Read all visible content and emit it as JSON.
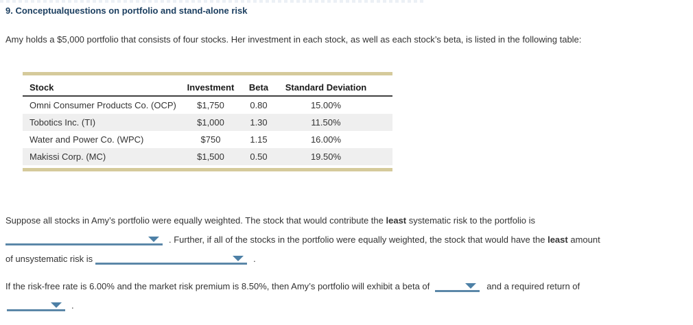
{
  "page": {
    "title": "9. Conceptualquestions on portfolio and stand-alone risk",
    "intro": "Amy holds a $5,000 portfolio that consists of four stocks. Her investment in each stock, as well as each stock’s beta, is listed in the following table:"
  },
  "table": {
    "headers": [
      "Stock",
      "Investment",
      "Beta",
      "Standard Deviation"
    ],
    "rows": [
      [
        "Omni Consumer Products Co. (OCP)",
        "$1,750",
        "0.80",
        "15.00%"
      ],
      [
        "Tobotics Inc. (TI)",
        "$1,000",
        "1.30",
        "11.50%"
      ],
      [
        "Water and Power Co. (WPC)",
        "$750",
        "1.15",
        "16.00%"
      ],
      [
        "Makissi Corp. (MC)",
        "$1,500",
        "0.50",
        "19.50%"
      ]
    ]
  },
  "q1": {
    "l1a": "Suppose all stocks in Amy’s portfolio were equally weighted. The stock that would contribute the ",
    "l1b": "least",
    "l1c": " systematic risk to the portfolio is",
    "l2a": ". Further, if all of the stocks in the portfolio were equally weighted, the stock that would have the ",
    "l2b": "least",
    "l2c": " amount",
    "l3a": "of unsystematic risk is",
    "l3b": "."
  },
  "q2": {
    "l1a": "If the risk-free rate is 6.00% and the market risk premium is 8.50%, then Amy’s portfolio will exhibit a beta of",
    "l1b": "and a required return of",
    "l2a": "."
  },
  "dropdowns": {
    "least_systematic_risk": {
      "value": "",
      "icon": "dropdown-arrow-icon"
    },
    "least_unsystematic_risk": {
      "value": "",
      "icon": "dropdown-arrow-icon"
    },
    "portfolio_beta": {
      "value": "",
      "icon": "dropdown-arrow-icon"
    },
    "required_return": {
      "value": "",
      "icon": "dropdown-arrow-icon"
    }
  },
  "colors": {
    "title_navy": "#1c3f60",
    "table_accent_tan": "#d5ca9b",
    "row_stripe_gray": "#efefef",
    "header_rule_dark": "#404040",
    "dropdown_blue_line": "#5b87a8",
    "dropdown_blue_arrow": "#4d80a6",
    "body_text": "#333333"
  }
}
